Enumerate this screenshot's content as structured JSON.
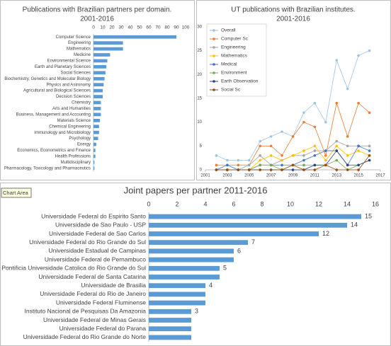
{
  "chart_data": [
    {
      "type": "bar",
      "orientation": "horizontal",
      "title": "Publications with Brazilian partners per domain.",
      "subtitle": "2001-2016",
      "categories": [
        "Computer Science",
        "Engineering",
        "Mathematics",
        "Medicine",
        "Environmental Science",
        "Earth and Planetary Sciences",
        "Social Sciences",
        "Biochemistry, Genetics and Molecular Biology",
        "Physics and Astronomy",
        "Agricultural and Biological Sciences",
        "Decision Sciences",
        "Chemistry",
        "Arts and Humanities",
        "Business, Management and Accounting",
        "Materials Science",
        "Chemical Engineering",
        "Immunology and Microbiology",
        "Psychology",
        "Energy",
        "Economics, Econometrics and Finance",
        "Health Professions",
        "Multidisciplinary",
        "Pharmacology, Toxicology and Pharmaceutics"
      ],
      "values": [
        90,
        32,
        32,
        18,
        15,
        14,
        13,
        12,
        11,
        10,
        10,
        8,
        8,
        8,
        7,
        6,
        6,
        5,
        3,
        2,
        2,
        1,
        1
      ],
      "color": "#5b9bd5",
      "xlim": [
        0,
        100
      ],
      "xticks": [
        0,
        10,
        20,
        30,
        40,
        50,
        60,
        70,
        80,
        90,
        100
      ]
    },
    {
      "type": "line",
      "title": "UT publications with Brazilian institutes.",
      "subtitle": "2001-2016",
      "x": [
        2002,
        2003,
        2004,
        2005,
        2006,
        2007,
        2008,
        2009,
        2010,
        2011,
        2012,
        2013,
        2014,
        2015,
        2016
      ],
      "series": [
        {
          "name": "Overall",
          "color": "#9dc3e6",
          "values": [
            3,
            2,
            2,
            2,
            6,
            7,
            8,
            7,
            12,
            14,
            10,
            23,
            17,
            24,
            25
          ]
        },
        {
          "name": "Computer Sc",
          "color": "#ed7d31",
          "values": [
            1,
            1,
            1,
            1,
            5,
            5,
            3,
            7,
            10,
            9,
            3,
            14,
            7,
            14,
            12
          ]
        },
        {
          "name": "Engineering",
          "color": "#a5a5a5",
          "values": [
            0,
            0,
            0,
            1,
            3,
            1,
            2,
            3,
            3,
            4,
            4,
            6,
            5,
            5,
            5
          ]
        },
        {
          "name": "Mathematics",
          "color": "#ffc000",
          "values": [
            0,
            0,
            0,
            0,
            2,
            3,
            2,
            3,
            4,
            5,
            2,
            5,
            3,
            4,
            3
          ]
        },
        {
          "name": "Medical",
          "color": "#4472c4",
          "values": [
            0,
            1,
            0,
            0,
            1,
            1,
            1,
            1,
            2,
            3,
            4,
            4,
            1,
            5,
            4
          ]
        },
        {
          "name": "Environment",
          "color": "#70ad47",
          "values": [
            0,
            0,
            0,
            0,
            1,
            1,
            0,
            1,
            1,
            1,
            1,
            2,
            0,
            1,
            2
          ]
        },
        {
          "name": "Earth Observation",
          "color": "#264478",
          "values": [
            0,
            0,
            0,
            0,
            0,
            0,
            0,
            0,
            0,
            1,
            1,
            4,
            1,
            1,
            2
          ]
        },
        {
          "name": "Social Sc",
          "color": "#9e480e",
          "values": [
            0,
            0,
            0,
            0,
            0,
            0,
            0,
            1,
            0,
            0,
            1,
            0,
            0,
            0,
            3
          ]
        }
      ],
      "xlim": [
        2001,
        2017
      ],
      "xticks": [
        2001,
        2003,
        2005,
        2007,
        2009,
        2011,
        2013,
        2015,
        2017
      ],
      "ylim": [
        0,
        30
      ],
      "yticks": [
        0,
        5,
        10,
        15,
        20,
        25,
        30
      ],
      "legend": "top-left"
    },
    {
      "type": "bar",
      "orientation": "horizontal",
      "title": "Joint papers per partner 2011-2016",
      "tooltip": "Chart Area",
      "categories": [
        "Universidade Federal do Espirito Santo",
        "Universidade de Sao Paulo - USP",
        "Universidade Federal de Sao Carlos",
        "Universidade Federal do Rio Grande do Sul",
        "Universidade Estadual de Campinas",
        "Universidade Federal de Pernambuco",
        "Pontificia Universidade Catolica do Rio Grande do Sul",
        "Universidade Federal de Santa Catarina",
        "Universidade de Brasilia",
        "Universidade Federal do Rio de Janeiro",
        "Universidade Federal Fluminense",
        "Instituto Nacional de Pesquisas Da Amazonia",
        "Universidade Federal de Minas Gerais",
        "Universidade Federal do Parana",
        "Universidade Federal do Rio Grande do Norte"
      ],
      "values": [
        15,
        14,
        12,
        7,
        6,
        6,
        5,
        5,
        4,
        4,
        4,
        3,
        3,
        3,
        3
      ],
      "value_labels": [
        "15",
        "14",
        "12",
        "7",
        "6",
        null,
        "5",
        null,
        "4",
        null,
        null,
        "3",
        null,
        null,
        null
      ],
      "color": "#5b9bd5",
      "xlim": [
        0,
        16
      ],
      "xticks": [
        0,
        2,
        4,
        6,
        8,
        10,
        12,
        14,
        16
      ]
    }
  ]
}
